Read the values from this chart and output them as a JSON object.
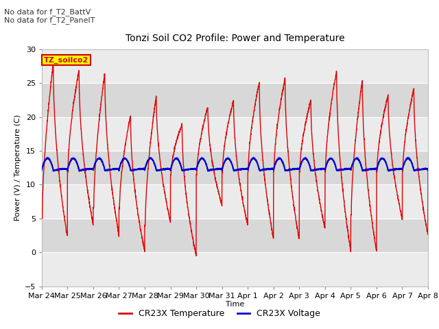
{
  "title": "Tonzi Soil CO2 Profile: Power and Temperature",
  "ylabel": "Power (V) / Temperature (C)",
  "xlabel": "Time",
  "ylim": [
    -5,
    30
  ],
  "x_tick_labels": [
    "Mar 24",
    "Mar 25",
    "Mar 26",
    "Mar 27",
    "Mar 28",
    "Mar 29",
    "Mar 30",
    "Mar 31",
    "Apr 1",
    "Apr 2",
    "Apr 3",
    "Apr 4",
    "Apr 5",
    "Apr 6",
    "Apr 7",
    "Apr 8"
  ],
  "annotations_top_left": [
    "No data for f_T2_BattV",
    "No data for f_T2_PanelT"
  ],
  "legend_box_label": "TZ_soilco2",
  "legend_box_color": "#ffff00",
  "legend_box_border": "#cc0000",
  "red_color": "#dd0000",
  "blue_color": "#0000cc",
  "plot_bg_dark": "#d8d8d8",
  "plot_bg_light": "#ebebeb",
  "grid_color": "#ffffff",
  "title_fontsize": 10,
  "axis_fontsize": 8,
  "tick_fontsize": 8,
  "annot_fontsize": 8,
  "peaks": [
    28.0,
    27.0,
    26.5,
    20.3,
    23.2,
    19.0,
    21.5,
    22.5,
    25.2,
    25.8,
    22.5,
    26.8,
    25.5,
    23.3,
    24.2,
    24.0
  ],
  "troughs": [
    2.2,
    4.0,
    2.5,
    0.2,
    4.5,
    -0.5,
    7.0,
    4.0,
    2.0,
    1.8,
    3.5,
    0.2,
    0.2,
    5.0,
    2.5,
    2.5
  ],
  "start_vals": [
    5.0,
    12.0,
    6.5,
    6.5,
    4.0,
    11.5,
    11.5,
    12.0,
    12.0,
    12.0,
    12.0,
    12.0,
    5.5,
    12.0,
    12.0,
    12.0
  ]
}
